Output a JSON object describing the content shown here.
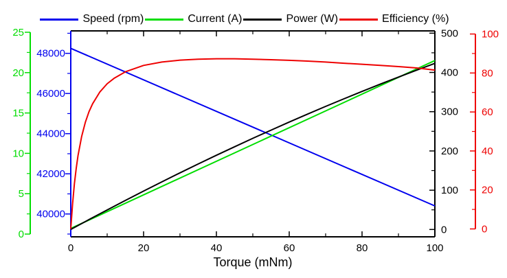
{
  "chart_data": {
    "type": "line",
    "title": "",
    "xlabel": "Torque (mNm)",
    "legend_position": "top",
    "x_axis": {
      "min": 0,
      "max": 100,
      "ticks": [
        0,
        20,
        40,
        60,
        80,
        100
      ],
      "minor_step": 10
    },
    "y_axes": [
      {
        "id": "current",
        "label": "Current (A)",
        "color": "#00dd00",
        "side": "far-left",
        "min": -0.34,
        "max": 25.17,
        "ticks": [
          0,
          5,
          10,
          15,
          20,
          25
        ],
        "minor_step": 2.5
      },
      {
        "id": "speed",
        "label": "Speed (rpm)",
        "color": "#0000ee",
        "side": "left",
        "min": 38862,
        "max": 49118,
        "ticks": [
          40000,
          42000,
          44000,
          46000,
          48000
        ],
        "minor_step": 1000
      },
      {
        "id": "power",
        "label": "Power (W)",
        "color": "#000000",
        "side": "right",
        "min": -18.7,
        "max": 505.8,
        "ticks": [
          0,
          100,
          200,
          300,
          400,
          500
        ],
        "minor_step": 50
      },
      {
        "id": "efficiency",
        "label": "Efficiency (%)",
        "color": "#ee0000",
        "side": "far-right",
        "min": -4.05,
        "max": 101.6,
        "ticks": [
          0,
          20,
          40,
          60,
          80,
          100
        ],
        "minor_step": 10
      }
    ],
    "series": [
      {
        "name": "Speed (rpm)",
        "axis": "speed",
        "color": "#0000ee",
        "x": [
          0,
          100
        ],
        "y": [
          48250,
          40400
        ]
      },
      {
        "name": "Current (A)",
        "axis": "current",
        "color": "#00dd00",
        "x": [
          0,
          100
        ],
        "y": [
          0.7,
          21.5
        ]
      },
      {
        "name": "Power (W)",
        "axis": "power",
        "color": "#000000",
        "x": [
          0,
          5,
          10,
          15,
          20,
          25,
          30,
          35,
          40,
          45,
          50,
          55,
          60,
          65,
          70,
          75,
          80,
          85,
          90,
          95,
          100
        ],
        "y": [
          0,
          25.1,
          49.7,
          73.9,
          97.8,
          121.2,
          144.2,
          166.8,
          189.0,
          210.7,
          232.1,
          253.0,
          273.6,
          293.7,
          313.4,
          332.7,
          351.6,
          370.1,
          388.1,
          405.8,
          423.1
        ]
      },
      {
        "name": "Efficiency (%)",
        "axis": "efficiency",
        "color": "#ee0000",
        "x": [
          0,
          0.5,
          1,
          1.5,
          2,
          3,
          4,
          5,
          6,
          8,
          10,
          12,
          15,
          20,
          25,
          30,
          35,
          40,
          45,
          50,
          55,
          60,
          65,
          70,
          75,
          80,
          85,
          90,
          95,
          100
        ],
        "y": [
          0,
          13.1,
          23.2,
          31.2,
          37.7,
          47.5,
          54.7,
          60.1,
          64.2,
          70.3,
          74.5,
          77.4,
          80.6,
          83.9,
          85.6,
          86.6,
          87.1,
          87.3,
          87.3,
          87.1,
          86.8,
          86.5,
          86.1,
          85.6,
          85.0,
          84.5,
          83.9,
          83.3,
          82.6,
          81.5
        ]
      }
    ]
  }
}
